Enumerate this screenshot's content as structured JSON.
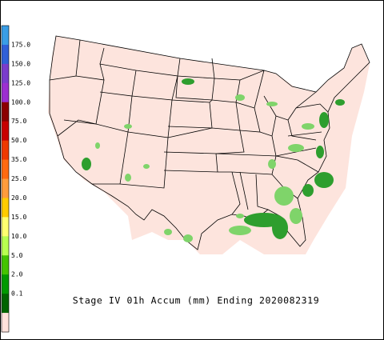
{
  "legend": {
    "colors": [
      "#3a9ee6",
      "#3060d8",
      "#7a3ccc",
      "#9c2fd0",
      "#8b0000",
      "#c80000",
      "#ee3a00",
      "#ff6a10",
      "#ff9c3c",
      "#ffcc00",
      "#ffff70",
      "#b8ff50",
      "#44c400",
      "#009a00",
      "#006400",
      "#ffe2dc"
    ],
    "labels": [
      "175.0",
      "150.0",
      "125.0",
      "100.0",
      "75.0",
      "50.0",
      "35.0",
      "25.0",
      "20.0",
      "15.0",
      "10.0",
      "5.0",
      "2.0",
      "0.1"
    ]
  },
  "caption": "Stage IV 01h Accum (mm) Ending 2020082319"
}
